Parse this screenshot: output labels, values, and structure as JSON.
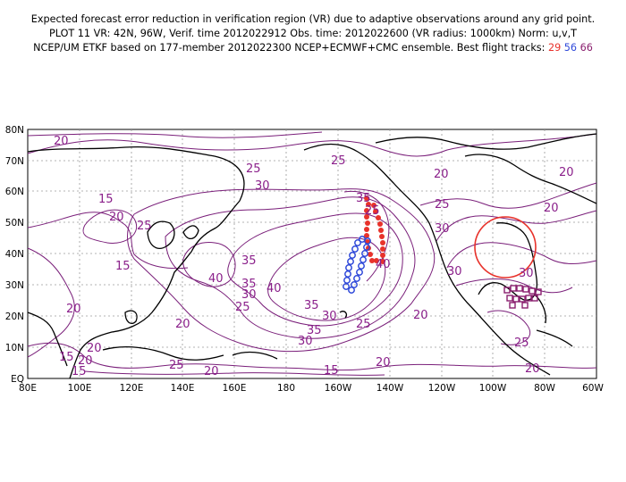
{
  "title": {
    "line1": "Expected forecast error reduction in verification region (VR) due to adaptive observations around any grid point.",
    "line2": "PLOT 11 VR: 42N, 96W, Verif. time 2012022912 Obs. time: 2012022600 (VR radius: 1000km) Norm: u,v,T",
    "line3_prefix": "NCEP/UM ETKF based on 177-member 2012022300 NCEP+ECMWF+CMC ensemble. Best flight tracks:",
    "tracks": [
      {
        "label": "29",
        "color": "#e8322b"
      },
      {
        "label": "56",
        "color": "#2f49d9"
      },
      {
        "label": "66",
        "color": "#8a1f6e"
      }
    ]
  },
  "axes": {
    "lat_labels": [
      "EQ",
      "10N",
      "20N",
      "30N",
      "40N",
      "50N",
      "60N",
      "70N",
      "80N"
    ],
    "lon_labels": [
      "80E",
      "100E",
      "120E",
      "140E",
      "160E",
      "180",
      "160W",
      "140W",
      "120W",
      "100W",
      "80W",
      "60W"
    ]
  },
  "contour_labels": [
    "20",
    "15",
    "25",
    "30",
    "35",
    "15",
    "20",
    "15",
    "25",
    "30",
    "40",
    "35",
    "30",
    "25",
    "40",
    "35",
    "30",
    "20",
    "20",
    "25",
    "20",
    "25",
    "20",
    "15",
    "20",
    "20",
    "25",
    "20",
    "40",
    "35",
    "30",
    "25",
    "20",
    "25",
    "30",
    "35",
    "30",
    "25",
    "20",
    "20",
    "20",
    "15"
  ],
  "verification_region": {
    "center": "42N, 96W",
    "radius": "1000km",
    "color": "#e8322b"
  },
  "colors": {
    "contour": "#7a1f7a",
    "coastline": "#000000",
    "track29": "#e8322b",
    "track56": "#2f49d9",
    "track66": "#8a1f6e"
  }
}
